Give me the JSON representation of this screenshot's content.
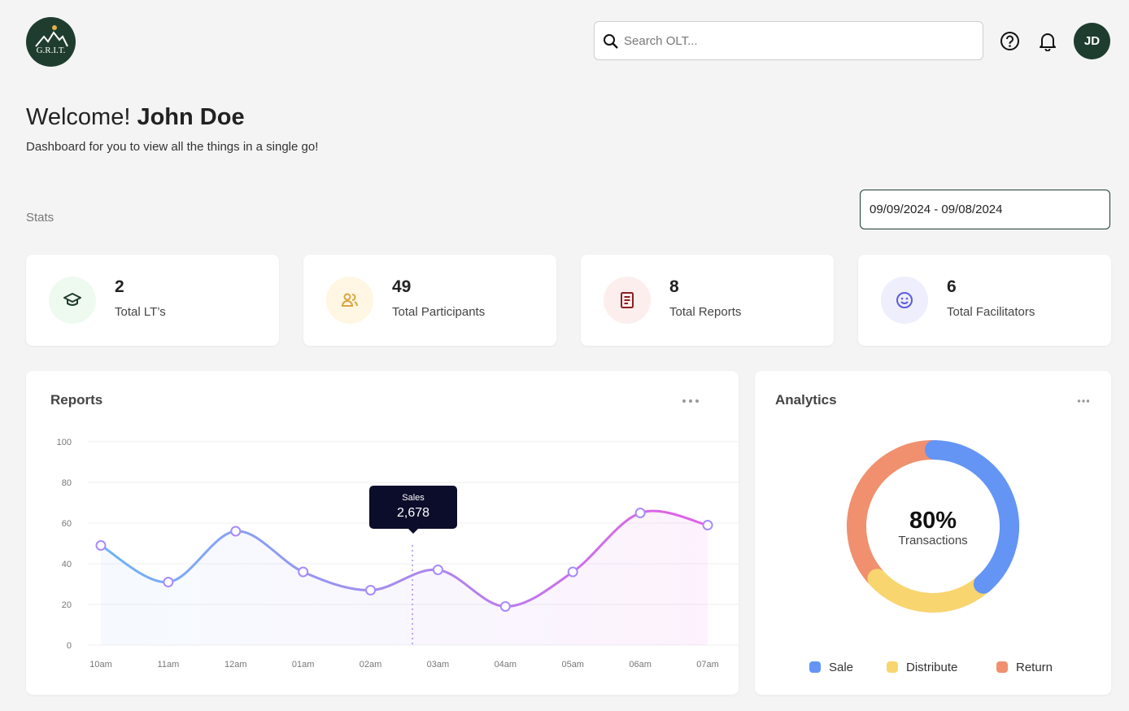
{
  "header": {
    "logo_text": "G.R.I.T.",
    "search_placeholder": "Search OLT...",
    "avatar": "JD"
  },
  "welcome": {
    "greeting": "Welcome!",
    "name": "John Doe",
    "subtitle": "Dashboard for you to view all the things in a single go!"
  },
  "stats_label": "Stats",
  "date_range": "09/09/2024 - 09/08/2024",
  "stats": [
    {
      "value": "2",
      "label": "Total LT’s"
    },
    {
      "value": "49",
      "label": "Total Participants"
    },
    {
      "value": "8",
      "label": "Total Reports"
    },
    {
      "value": "6",
      "label": "Total Facilitators"
    }
  ],
  "chart_data": [
    {
      "type": "line",
      "title": "Reports",
      "categories": [
        "10am",
        "11am",
        "12am",
        "01am",
        "02am",
        "03am",
        "04am",
        "05am",
        "06am",
        "07am"
      ],
      "series": [
        {
          "name": "Sales",
          "color": "#a78bfa",
          "gradient": [
            "#6cb4f7",
            "#e45ee6"
          ],
          "values": [
            49,
            31,
            56,
            36,
            27,
            37,
            19,
            36,
            65,
            59
          ]
        }
      ],
      "ylim": [
        0,
        100
      ],
      "yticks": [
        0,
        20,
        40,
        60,
        80,
        100
      ],
      "grid": true,
      "tooltip_value": "2,678"
    },
    {
      "type": "donut",
      "title": "Analytics",
      "center_value": "80%",
      "center_label": "Transactions",
      "categories": [
        "Sale",
        "Distribute",
        "Return"
      ],
      "values": [
        35,
        22,
        33
      ],
      "colors": [
        "#6495f5",
        "#f8d56f",
        "#f0906e"
      ],
      "legend": "bottom"
    }
  ]
}
